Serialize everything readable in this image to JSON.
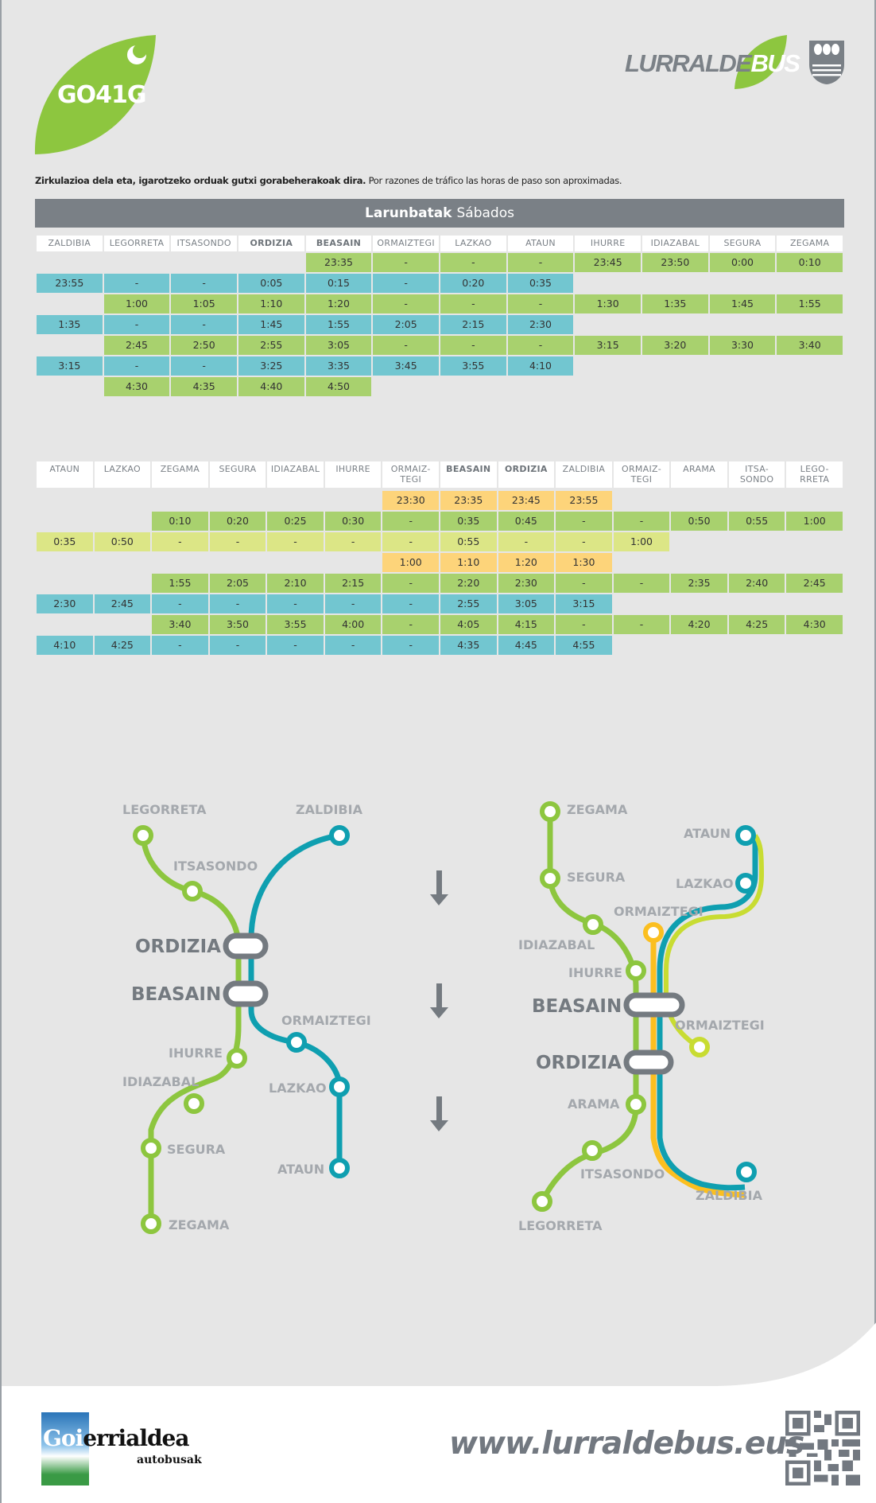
{
  "header": {
    "route_code": "GO41G",
    "route_icon": "moon-night-icon",
    "brand_prefix": "LURRALDE",
    "brand_suffix": "BUS",
    "crest_icon": "gipuzkoa-shield-icon"
  },
  "notice": {
    "basque": "Zirkulazioa dela eta, igarotzeko orduak gutxi gorabeherakoak dira.",
    "spanish": "Por razones de tráfico las horas de paso son aproximadas."
  },
  "title": {
    "basque": "Larunbatak",
    "spanish": "Sábados"
  },
  "colors": {
    "green": "#a8d16e",
    "blue": "#72c6d0",
    "lime": "#dce686",
    "orange": "#fdd47a",
    "grey": "#7a8086",
    "line_green": "#8dc63f",
    "line_teal": "#0f9fb0",
    "line_yellow": "#fbbf20",
    "line_lime": "#c8dc32"
  },
  "table1": {
    "headers": [
      "ZALDIBIA",
      "LEGORRETA",
      "ITSASONDO",
      "ORDIZIA",
      "BEASAIN",
      "ORMAIZTEGI",
      "LAZKAO",
      "ATAUN",
      "IHURRE",
      "IDIAZABAL",
      "SEGURA",
      "ZEGAMA"
    ],
    "bold_headers": [
      3,
      4
    ],
    "rows": [
      {
        "color": "green",
        "start": 4,
        "cells": [
          "23:35",
          "-",
          "-",
          "-",
          "23:45",
          "23:50",
          "0:00",
          "0:10"
        ]
      },
      {
        "color": "blue",
        "start": 0,
        "cells": [
          "23:55",
          "-",
          "-",
          "0:05",
          "0:15",
          "-",
          "0:20",
          "0:35"
        ]
      },
      {
        "color": "green",
        "start": 1,
        "cells": [
          "1:00",
          "1:05",
          "1:10",
          "1:20",
          "-",
          "-",
          "-",
          "1:30",
          "1:35",
          "1:45",
          "1:55"
        ]
      },
      {
        "color": "blue",
        "start": 0,
        "cells": [
          "1:35",
          "-",
          "-",
          "1:45",
          "1:55",
          "2:05",
          "2:15",
          "2:30"
        ]
      },
      {
        "color": "green",
        "start": 1,
        "cells": [
          "2:45",
          "2:50",
          "2:55",
          "3:05",
          "-",
          "-",
          "-",
          "3:15",
          "3:20",
          "3:30",
          "3:40"
        ]
      },
      {
        "color": "blue",
        "start": 0,
        "cells": [
          "3:15",
          "-",
          "-",
          "3:25",
          "3:35",
          "3:45",
          "3:55",
          "4:10"
        ]
      },
      {
        "color": "green",
        "start": 1,
        "cells": [
          "4:30",
          "4:35",
          "4:40",
          "4:50"
        ]
      }
    ]
  },
  "table2": {
    "headers": [
      "ATAUN",
      "LAZKAO",
      "ZEGAMA",
      "SEGURA",
      "IDIAZABAL",
      "IHURRE",
      "ORMAIZ-\nTEGI",
      "BEASAIN",
      "ORDIZIA",
      "ZALDIBIA",
      "ORMAIZ-\nTEGI",
      "ARAMA",
      "ITSA-\nSONDO",
      "LEGO-\nRRETA"
    ],
    "bold_headers": [
      7,
      8
    ],
    "rows": [
      {
        "color": "orange",
        "start": 6,
        "cells": [
          "23:30",
          "23:35",
          "23:45",
          "23:55"
        ]
      },
      {
        "color": "green",
        "start": 2,
        "cells": [
          "0:10",
          "0:20",
          "0:25",
          "0:30",
          "-",
          "0:35",
          "0:45",
          "-",
          "-",
          "0:50",
          "0:55",
          "1:00"
        ]
      },
      {
        "color": "lime",
        "start": 0,
        "cells": [
          "0:35",
          "0:50",
          "-",
          "-",
          "-",
          "-",
          "-",
          "0:55",
          "-",
          "-",
          "1:00"
        ]
      },
      {
        "color": "orange",
        "start": 6,
        "cells": [
          "1:00",
          "1:10",
          "1:20",
          "1:30"
        ]
      },
      {
        "color": "green",
        "start": 2,
        "cells": [
          "1:55",
          "2:05",
          "2:10",
          "2:15",
          "-",
          "2:20",
          "2:30",
          "-",
          "-",
          "2:35",
          "2:40",
          "2:45"
        ]
      },
      {
        "color": "blue",
        "start": 0,
        "cells": [
          "2:30",
          "2:45",
          "-",
          "-",
          "-",
          "-",
          "-",
          "2:55",
          "3:05",
          "3:15"
        ]
      },
      {
        "color": "green",
        "start": 2,
        "cells": [
          "3:40",
          "3:50",
          "3:55",
          "4:00",
          "-",
          "4:05",
          "4:15",
          "-",
          "-",
          "4:20",
          "4:25",
          "4:30"
        ]
      },
      {
        "color": "blue",
        "start": 0,
        "cells": [
          "4:10",
          "4:25",
          "-",
          "-",
          "-",
          "-",
          "-",
          "4:35",
          "4:45",
          "4:55"
        ]
      }
    ]
  },
  "map_left": {
    "stops": {
      "legorreta": "LEGORRETA",
      "itsasondo": "ITSASONDO",
      "zaldibia": "ZALDIBIA",
      "ordizia": "ORDIZIA",
      "beasain": "BEASAIN",
      "ormaiztegi": "ORMAIZTEGI",
      "ihurre": "IHURRE",
      "idiazabal": "IDIAZABAL",
      "lazkao": "LAZKAO",
      "segura": "SEGURA",
      "ataun": "ATAUN",
      "zegama": "ZEGAMA"
    }
  },
  "map_right": {
    "stops": {
      "zegama": "ZEGAMA",
      "ataun": "ATAUN",
      "segura": "SEGURA",
      "lazkao": "LAZKAO",
      "ormaiztegi_top": "ORMAIZTEGI",
      "idiazabal": "IDIAZABAL",
      "ihurre": "IHURRE",
      "beasain": "BEASAIN",
      "ormaiztegi_side": "ORMAIZTEGI",
      "ordizia": "ORDIZIA",
      "arama": "ARAMA",
      "itsasondo": "ITSASONDO",
      "zaldibia": "ZALDIBIA",
      "legorreta": "LEGORRETA"
    }
  },
  "direction_icon": "arrow-down-icon",
  "footer": {
    "operator_highlight": "Goi",
    "operator_rest": "errialdea",
    "operator_sub": "autobusak",
    "website": "www.lurraldebus.eus",
    "qr_icon": "qr-code-icon"
  }
}
